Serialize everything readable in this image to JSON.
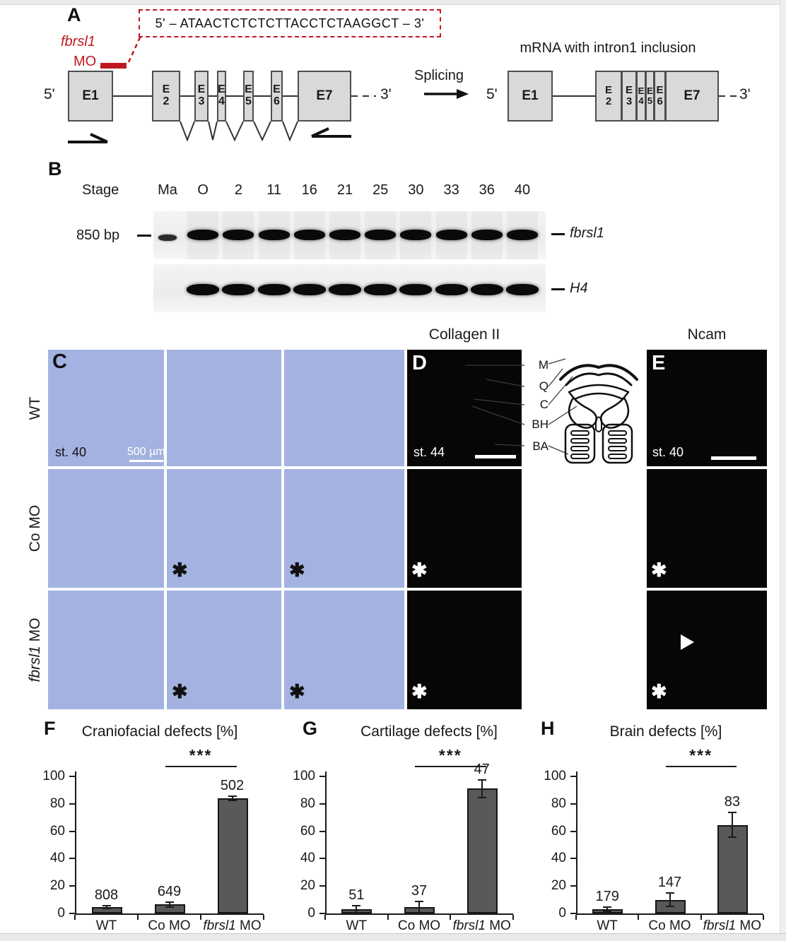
{
  "glyphs": {
    "asterisk": "✱"
  },
  "panelA": {
    "label": "A",
    "mo_sequence": "5' – ATAACTCTCTCTTACCTCTAAGGCT – 3'",
    "mo_gene": "fbrsl1",
    "mo_label": "MO",
    "five_prime": "5'",
    "three_prime": "3'",
    "splicing_label": "Splicing",
    "mrna_title": "mRNA with intron1 inclusion",
    "exons_pre": [
      [
        "E1"
      ],
      [
        "E",
        "2"
      ],
      [
        "E",
        "3"
      ],
      [
        "E",
        "4"
      ],
      [
        "E",
        "5"
      ],
      [
        "E",
        "6"
      ],
      [
        "E7"
      ]
    ],
    "exons_mrna_first": "E1",
    "exons_mrna_block": [
      [
        "E",
        "2"
      ],
      [
        "E",
        "3"
      ],
      [
        "E",
        "4"
      ],
      [
        "E",
        "5"
      ],
      [
        "E",
        "6"
      ],
      [
        "E7"
      ]
    ]
  },
  "panelB": {
    "label": "B",
    "stage_label": "Stage",
    "lanes": [
      "Ma",
      "O",
      "2",
      "11",
      "16",
      "21",
      "25",
      "30",
      "33",
      "36",
      "40"
    ],
    "marker_label": "850 bp",
    "gene_top": "fbrsl1",
    "gene_bottom": "H4"
  },
  "panelC": {
    "label": "C",
    "rows": [
      {
        "italic": "",
        "text": "WT"
      },
      {
        "italic": "",
        "text": "Co MO"
      },
      {
        "italic": "fbrsl1",
        "text": " MO"
      }
    ],
    "stage": "st. 40",
    "scalebar": "500 µm"
  },
  "panelD": {
    "label": "D",
    "title": "Collagen II",
    "stage": "st. 44",
    "anatomy_labels": [
      "M",
      "Q",
      "C",
      "BH",
      "BA"
    ]
  },
  "panelE": {
    "label": "E",
    "title": "Ncam",
    "stage": "st. 40"
  },
  "chart_data": [
    {
      "type": "bar",
      "panel_label": "F",
      "title": "Craniofacial defects [%]",
      "categories": [
        "WT",
        "Co MO",
        "fbrsl1 MO"
      ],
      "italic_token": "fbrsl1",
      "values": [
        4.5,
        6.5,
        84
      ],
      "errors": [
        1,
        2,
        1.5
      ],
      "n_labels": [
        "808",
        "649",
        "502"
      ],
      "ylim": [
        0,
        100
      ],
      "yticks": [
        0,
        20,
        40,
        60,
        80,
        100
      ],
      "significance": {
        "between": [
          1,
          2
        ],
        "label": "***"
      }
    },
    {
      "type": "bar",
      "panel_label": "G",
      "title": "Cartilage defects [%]",
      "categories": [
        "WT",
        "Co MO",
        "fbrsl1 MO"
      ],
      "italic_token": "fbrsl1",
      "values": [
        3,
        4.5,
        91
      ],
      "errors": [
        2.5,
        4.5,
        6.5
      ],
      "n_labels": [
        "51",
        "37",
        "47"
      ],
      "ylim": [
        0,
        100
      ],
      "yticks": [
        0,
        20,
        40,
        60,
        80,
        100
      ],
      "significance": {
        "between": [
          1,
          2
        ],
        "label": "***"
      }
    },
    {
      "type": "bar",
      "panel_label": "H",
      "title": "Brain defects [%]",
      "categories": [
        "WT",
        "Co MO",
        "fbrsl1 MO"
      ],
      "italic_token": "fbrsl1",
      "values": [
        3,
        10,
        64.5
      ],
      "errors": [
        1.5,
        5,
        9
      ],
      "n_labels": [
        "179",
        "147",
        "83"
      ],
      "ylim": [
        0,
        100
      ],
      "yticks": [
        0,
        20,
        40,
        60,
        80,
        100
      ],
      "significance": {
        "between": [
          1,
          2
        ],
        "label": "***"
      }
    }
  ]
}
